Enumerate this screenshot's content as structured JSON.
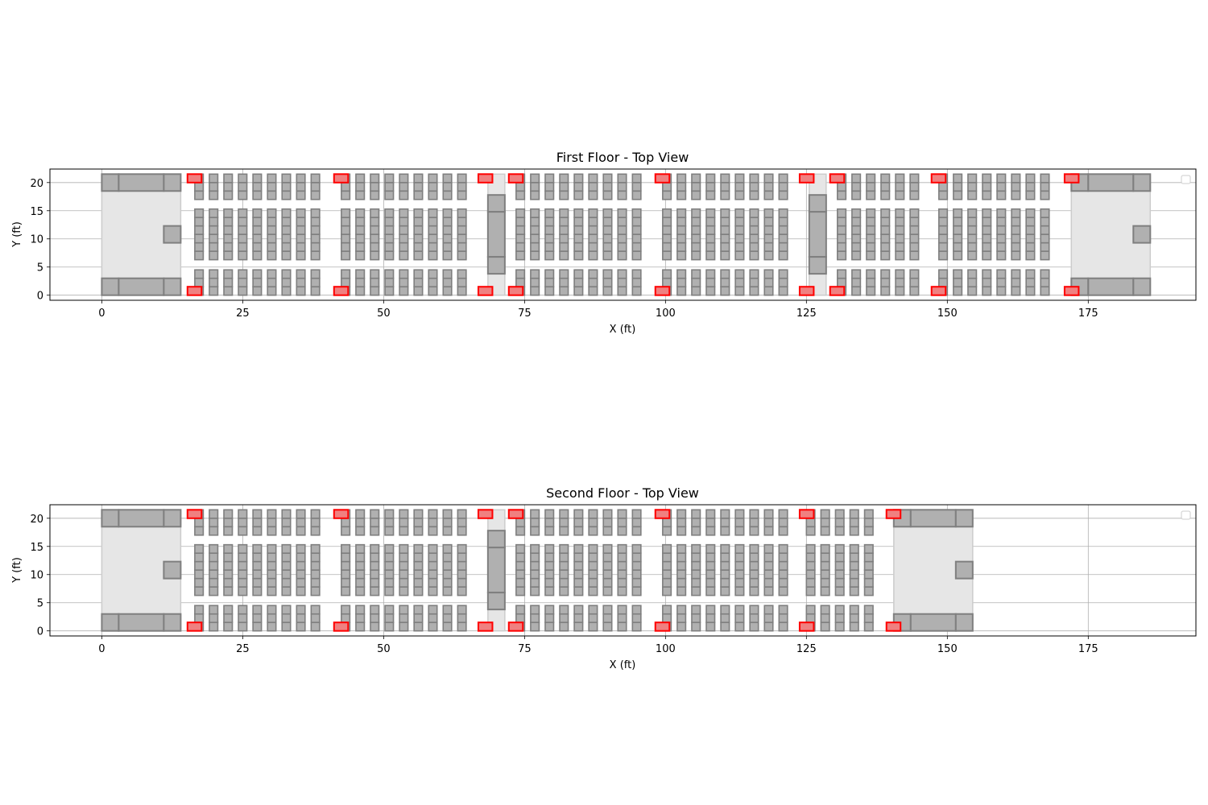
{
  "panels": [
    {
      "title": "First Floor - Top View",
      "xlabel": "X (ft)",
      "ylabel": "Y (ft)",
      "xlim": [
        -9.2,
        194.1
      ],
      "ylim": [
        -0.9,
        22.4
      ],
      "xticks": [
        0,
        25,
        50,
        75,
        100,
        125,
        150,
        175
      ],
      "yticks": [
        0,
        5,
        10,
        15,
        20
      ],
      "grid": true,
      "legend": "upper right, empty",
      "end_zones": [
        [
          0,
          14
        ],
        [
          172,
          186
        ]
      ],
      "partitions": [
        [
          68.5,
          71.5
        ],
        [
          125.5,
          128.5
        ]
      ],
      "seat_blocks": [
        {
          "x_start": 16.5,
          "count": 9
        },
        {
          "x_start": 42.5,
          "count": 9
        },
        {
          "x_start": 73.5,
          "count": 9
        },
        {
          "x_start": 99.5,
          "count": 9
        },
        {
          "x_start": 130.5,
          "count": 6
        },
        {
          "x_start": 148.5,
          "count": 8
        }
      ],
      "exits": [
        15.2,
        41.2,
        66.8,
        72.2,
        98.2,
        123.8,
        129.2,
        147.2,
        170.8
      ]
    },
    {
      "title": "Second Floor - Top View",
      "xlabel": "X (ft)",
      "ylabel": "Y (ft)",
      "xlim": [
        -9.2,
        194.1
      ],
      "ylim": [
        -0.9,
        22.4
      ],
      "xticks": [
        0,
        25,
        50,
        75,
        100,
        125,
        150,
        175
      ],
      "yticks": [
        0,
        5,
        10,
        15,
        20
      ],
      "grid": true,
      "legend": "upper right, empty",
      "end_zones": [
        [
          0,
          14
        ],
        [
          140.5,
          154.5
        ]
      ],
      "partitions": [
        [
          68.5,
          71.5
        ]
      ],
      "seat_blocks": [
        {
          "x_start": 16.5,
          "count": 9
        },
        {
          "x_start": 42.5,
          "count": 9
        },
        {
          "x_start": 73.5,
          "count": 9
        },
        {
          "x_start": 99.5,
          "count": 9
        },
        {
          "x_start": 125.0,
          "count": 5
        }
      ],
      "exits": [
        15.2,
        41.2,
        66.8,
        72.2,
        98.2,
        123.8,
        139.2
      ]
    }
  ]
}
